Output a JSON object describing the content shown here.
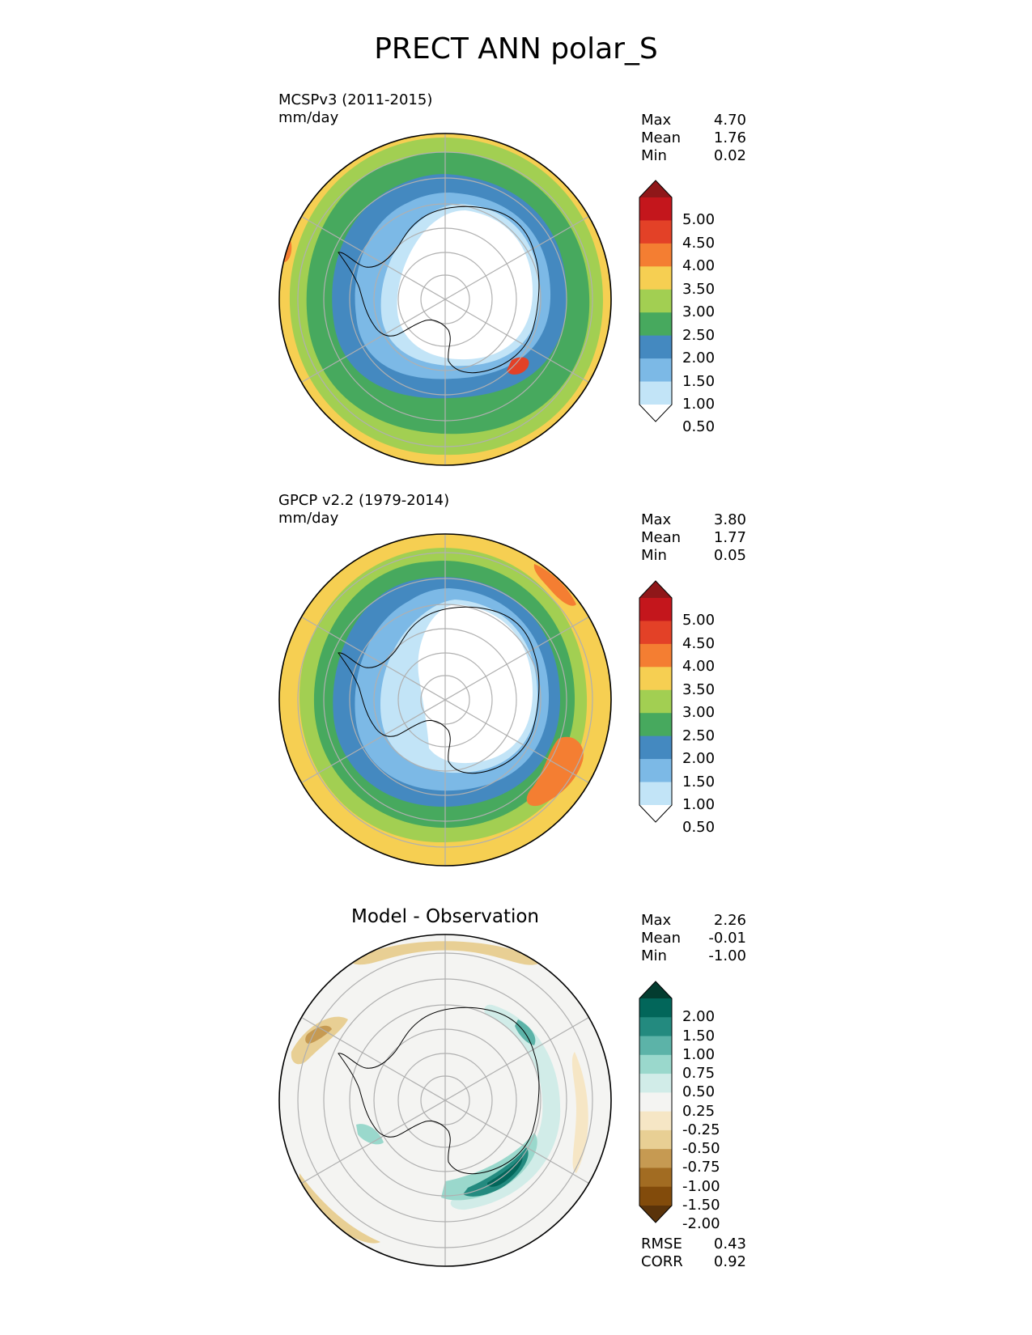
{
  "title": "PRECT ANN polar_S",
  "panels": [
    {
      "label_line1": "MCSPv3 (2011-2015)",
      "label_line2": "mm/day",
      "stats": [
        {
          "name": "Max",
          "value": "4.70"
        },
        {
          "name": "Mean",
          "value": "1.76"
        },
        {
          "name": "Min",
          "value": "0.02"
        }
      ]
    },
    {
      "label_line1": "GPCP v2.2 (1979-2014)",
      "label_line2": "mm/day",
      "stats": [
        {
          "name": "Max",
          "value": "3.80"
        },
        {
          "name": "Mean",
          "value": "1.77"
        },
        {
          "name": "Min",
          "value": "0.05"
        }
      ]
    },
    {
      "title": "Model - Observation",
      "stats": [
        {
          "name": "Max",
          "value": "2.26"
        },
        {
          "name": "Mean",
          "value": "-0.01"
        },
        {
          "name": "Min",
          "value": "-1.00"
        }
      ],
      "metrics": [
        {
          "name": "RMSE",
          "value": "0.43"
        },
        {
          "name": "CORR",
          "value": "0.92"
        }
      ]
    }
  ],
  "colorbars": {
    "precip": {
      "levels": [
        "5.00",
        "4.50",
        "4.00",
        "3.50",
        "3.00",
        "2.50",
        "2.00",
        "1.50",
        "1.00",
        "0.50"
      ],
      "colors": [
        "#8f1719",
        "#c4161c",
        "#e34127",
        "#f47e32",
        "#f6cf52",
        "#a2cf52",
        "#47a95e",
        "#4489c0",
        "#7cb9e6",
        "#c2e4f7",
        "#ffffff"
      ]
    },
    "diff": {
      "levels": [
        "2.00",
        "1.50",
        "1.00",
        "0.75",
        "0.50",
        "0.25",
        "-0.25",
        "-0.50",
        "-0.75",
        "-1.00",
        "-1.50",
        "-2.00"
      ],
      "colors": [
        "#033c30",
        "#02665a",
        "#238a7f",
        "#5cb3a8",
        "#9ad8cc",
        "#d1ece8",
        "#f4f4f2",
        "#f6e6c5",
        "#e8cf94",
        "#c69a52",
        "#a26c22",
        "#824b0b",
        "#5a330a"
      ]
    }
  },
  "chart_data": [
    {
      "type": "heatmap",
      "title": "MCSPv3 (2011-2015)",
      "units": "mm/day",
      "projection": "south polar stereographic",
      "max": 4.7,
      "mean": 1.76,
      "min": 0.02,
      "levels": [
        0.5,
        1.0,
        1.5,
        2.0,
        2.5,
        3.0,
        3.5,
        4.0,
        4.5,
        5.0
      ]
    },
    {
      "type": "heatmap",
      "title": "GPCP v2.2 (1979-2014)",
      "units": "mm/day",
      "projection": "south polar stereographic",
      "max": 3.8,
      "mean": 1.77,
      "min": 0.05,
      "levels": [
        0.5,
        1.0,
        1.5,
        2.0,
        2.5,
        3.0,
        3.5,
        4.0,
        4.5,
        5.0
      ]
    },
    {
      "type": "heatmap",
      "title": "Model - Observation",
      "projection": "south polar stereographic",
      "max": 2.26,
      "mean": -0.01,
      "min": -1.0,
      "rmse": 0.43,
      "corr": 0.92,
      "levels": [
        -2.0,
        -1.5,
        -1.0,
        -0.75,
        -0.5,
        -0.25,
        0.25,
        0.5,
        0.75,
        1.0,
        1.5,
        2.0
      ]
    }
  ]
}
